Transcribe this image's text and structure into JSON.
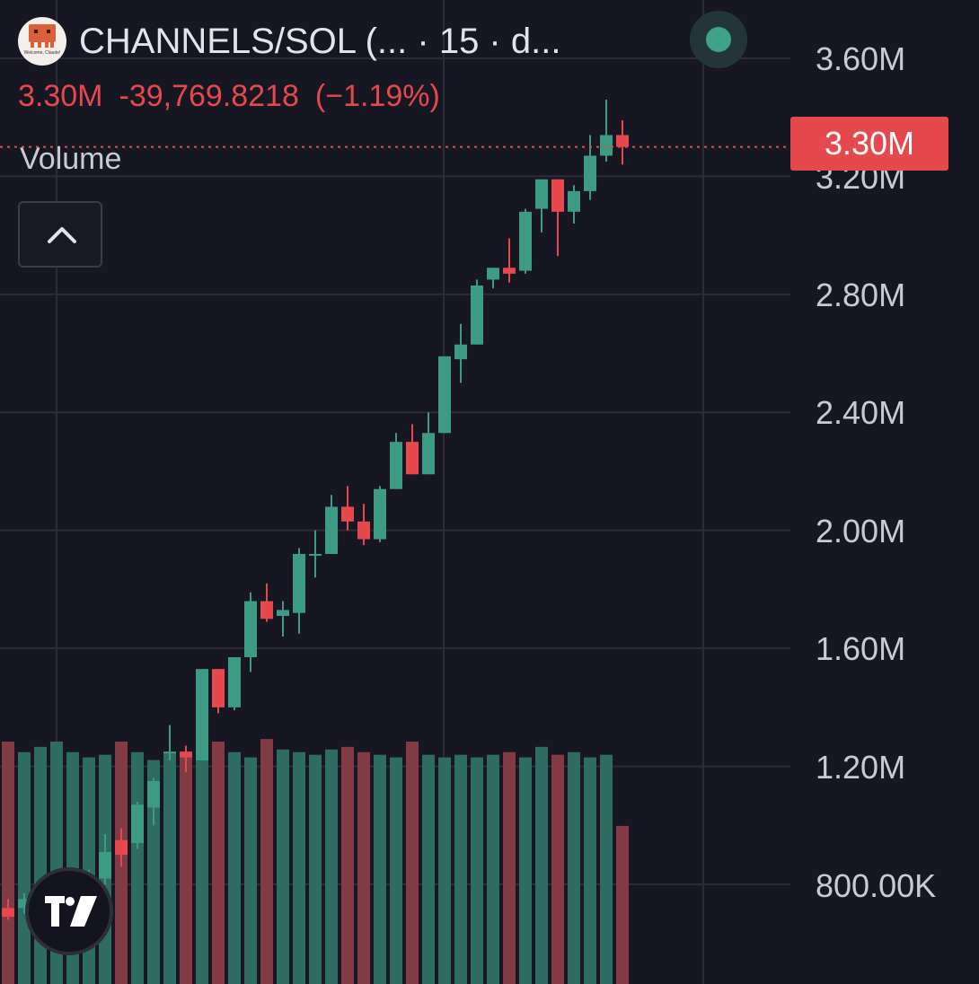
{
  "header": {
    "symbol_text": "CHANNELS/SOL (...  · 15 · d...",
    "logo_text": "Welcome, Claude!",
    "last_price": "3.30M",
    "change_abs": "-39,769.8218",
    "change_pct": "(−1.19%)",
    "volume_label": "Volume"
  },
  "price_tag": "3.30M",
  "colors": {
    "up": "#3d9b83",
    "down": "#e5484d",
    "vol_up": "#2e6b60",
    "vol_down": "#823a44",
    "background": "#161722",
    "grid": "#2b2c38"
  },
  "icons": {
    "collapse": "chevron-up-icon",
    "brand": "tradingview-logo-icon",
    "status": "live-dot-icon"
  },
  "chart_data": {
    "type": "candlestick",
    "y_axis_ticks": [
      "3.60M",
      "3.20M",
      "2.80M",
      "2.40M",
      "2.00M",
      "1.60M",
      "1.20M",
      "800.00K"
    ],
    "y_tick_values": [
      3600000,
      3200000,
      2800000,
      2400000,
      2000000,
      1600000,
      1200000,
      800000
    ],
    "ylim": [
      480000,
      3780000
    ],
    "last_price": 3300000,
    "volume_ylim": [
      0,
      1
    ],
    "candles": [
      {
        "o": 0.72,
        "h": 0.75,
        "l": 0.68,
        "c": 0.69,
        "v": 0.92
      },
      {
        "o": 0.72,
        "h": 0.77,
        "l": 0.7,
        "c": 0.75,
        "v": 0.88
      },
      {
        "o": 0.74,
        "h": 0.78,
        "l": 0.72,
        "c": 0.77,
        "v": 0.9
      },
      {
        "o": 0.77,
        "h": 0.82,
        "l": 0.75,
        "c": 0.8,
        "v": 0.92
      },
      {
        "o": 0.79,
        "h": 0.83,
        "l": 0.76,
        "c": 0.8,
        "v": 0.88
      },
      {
        "o": 0.8,
        "h": 0.85,
        "l": 0.77,
        "c": 0.82,
        "v": 0.86
      },
      {
        "o": 0.82,
        "h": 0.97,
        "l": 0.8,
        "c": 0.91,
        "v": 0.87
      },
      {
        "o": 0.95,
        "h": 0.99,
        "l": 0.86,
        "c": 0.9,
        "v": 0.92
      },
      {
        "o": 0.94,
        "h": 1.08,
        "l": 0.92,
        "c": 1.07,
        "v": 0.88
      },
      {
        "o": 1.06,
        "h": 1.16,
        "l": 1.0,
        "c": 1.15,
        "v": 0.85
      },
      {
        "o": 1.25,
        "h": 1.34,
        "l": 1.22,
        "c": 1.25,
        "v": 0.88
      },
      {
        "o": 1.25,
        "h": 1.27,
        "l": 1.18,
        "c": 1.23,
        "v": 0.86
      },
      {
        "o": 1.22,
        "h": 1.53,
        "l": 1.22,
        "c": 1.53,
        "v": 0.87
      },
      {
        "o": 1.53,
        "h": 1.53,
        "l": 1.38,
        "c": 1.4,
        "v": 0.92
      },
      {
        "o": 1.4,
        "h": 1.57,
        "l": 1.39,
        "c": 1.57,
        "v": 0.88
      },
      {
        "o": 1.57,
        "h": 1.79,
        "l": 1.52,
        "c": 1.76,
        "v": 0.86
      },
      {
        "o": 1.76,
        "h": 1.82,
        "l": 1.69,
        "c": 1.7,
        "v": 0.93
      },
      {
        "o": 1.71,
        "h": 1.76,
        "l": 1.64,
        "c": 1.73,
        "v": 0.89
      },
      {
        "o": 1.72,
        "h": 1.94,
        "l": 1.65,
        "c": 1.92,
        "v": 0.88
      },
      {
        "o": 1.92,
        "h": 2.0,
        "l": 1.84,
        "c": 1.92,
        "v": 0.87
      },
      {
        "o": 1.92,
        "h": 2.12,
        "l": 1.92,
        "c": 2.08,
        "v": 0.89
      },
      {
        "o": 2.08,
        "h": 2.15,
        "l": 2.0,
        "c": 2.03,
        "v": 0.9
      },
      {
        "o": 2.03,
        "h": 2.09,
        "l": 1.95,
        "c": 1.97,
        "v": 0.88
      },
      {
        "o": 1.97,
        "h": 2.15,
        "l": 1.96,
        "c": 2.14,
        "v": 0.87
      },
      {
        "o": 2.14,
        "h": 2.33,
        "l": 2.14,
        "c": 2.3,
        "v": 0.86
      },
      {
        "o": 2.3,
        "h": 2.36,
        "l": 2.19,
        "c": 2.19,
        "v": 0.92
      },
      {
        "o": 2.19,
        "h": 2.4,
        "l": 2.19,
        "c": 2.33,
        "v": 0.87
      },
      {
        "o": 2.33,
        "h": 2.59,
        "l": 2.33,
        "c": 2.59,
        "v": 0.86
      },
      {
        "o": 2.58,
        "h": 2.7,
        "l": 2.5,
        "c": 2.63,
        "v": 0.87
      },
      {
        "o": 2.63,
        "h": 2.85,
        "l": 2.63,
        "c": 2.83,
        "v": 0.86
      },
      {
        "o": 2.85,
        "h": 2.89,
        "l": 2.82,
        "c": 2.89,
        "v": 0.87
      },
      {
        "o": 2.89,
        "h": 2.99,
        "l": 2.84,
        "c": 2.87,
        "v": 0.88
      },
      {
        "o": 2.88,
        "h": 3.09,
        "l": 2.87,
        "c": 3.08,
        "v": 0.86
      },
      {
        "o": 3.09,
        "h": 3.19,
        "l": 3.01,
        "c": 3.19,
        "v": 0.9
      },
      {
        "o": 3.19,
        "h": 3.19,
        "l": 2.93,
        "c": 3.08,
        "v": 0.87
      },
      {
        "o": 3.08,
        "h": 3.17,
        "l": 3.04,
        "c": 3.15,
        "v": 0.88
      },
      {
        "o": 3.15,
        "h": 3.34,
        "l": 3.12,
        "c": 3.27,
        "v": 0.86
      },
      {
        "o": 3.27,
        "h": 3.46,
        "l": 3.25,
        "c": 3.34,
        "v": 0.87
      },
      {
        "o": 3.34,
        "h": 3.39,
        "l": 3.24,
        "c": 3.3,
        "v": 0.6
      }
    ]
  }
}
